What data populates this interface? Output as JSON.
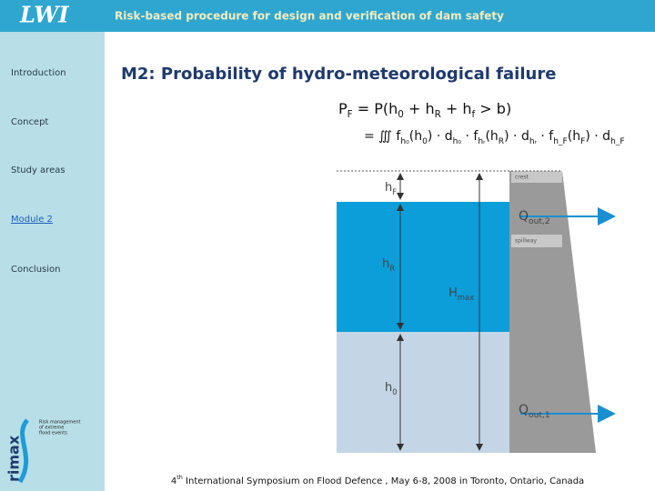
{
  "header": {
    "logo": "LWI",
    "title": "Risk-based procedure for design and verification of dam safety"
  },
  "nav": [
    "Introduction",
    "Concept",
    "Study areas",
    "Module 2",
    "Conclusion"
  ],
  "slide": {
    "title": "M2: Probability of hydro-meteorological failure",
    "formula": [
      [
        "P",
        {
          "sub": "F"
        },
        " = P(h",
        {
          "sub": "0"
        },
        " + h",
        {
          "sub": "R"
        },
        " + h",
        {
          "sub": "f"
        },
        "  >  b)"
      ],
      [
        "= ∭ f",
        {
          "sub": "h₀"
        },
        "(h",
        {
          "sub": "0"
        },
        ") · d",
        {
          "sub": "h₀"
        },
        " · f",
        {
          "sub": "hᵣ"
        },
        "(h",
        {
          "sub": "R"
        },
        ") · d",
        {
          "sub": "hᵣ"
        },
        " · f",
        {
          "sub": "h_F"
        },
        "(h",
        {
          "sub": "F"
        },
        ") · d",
        {
          "sub": "h_F"
        }
      ]
    ]
  },
  "diagram": {
    "crest": "crest",
    "spillway": "spillway",
    "hF": [
      "h",
      {
        "sub": "F"
      }
    ],
    "hR": [
      "h",
      {
        "sub": "R"
      }
    ],
    "Hmax": [
      "H",
      {
        "sub": "max"
      }
    ],
    "h0": [
      "h",
      {
        "sub": "0"
      }
    ],
    "qout2": [
      "Q",
      {
        "sub": "out,2"
      }
    ],
    "qout1": [
      "Q",
      {
        "sub": "out,1"
      }
    ]
  },
  "rimax": {
    "name": "rimax",
    "tagline": [
      "Risk management",
      "of extreme",
      "flood events"
    ]
  },
  "footer": [
    "4",
    {
      "sup": "th"
    },
    " International Symposium on Flood  Defence , May 6-8, 2008 in Toronto, Ontario, Canada"
  ]
}
